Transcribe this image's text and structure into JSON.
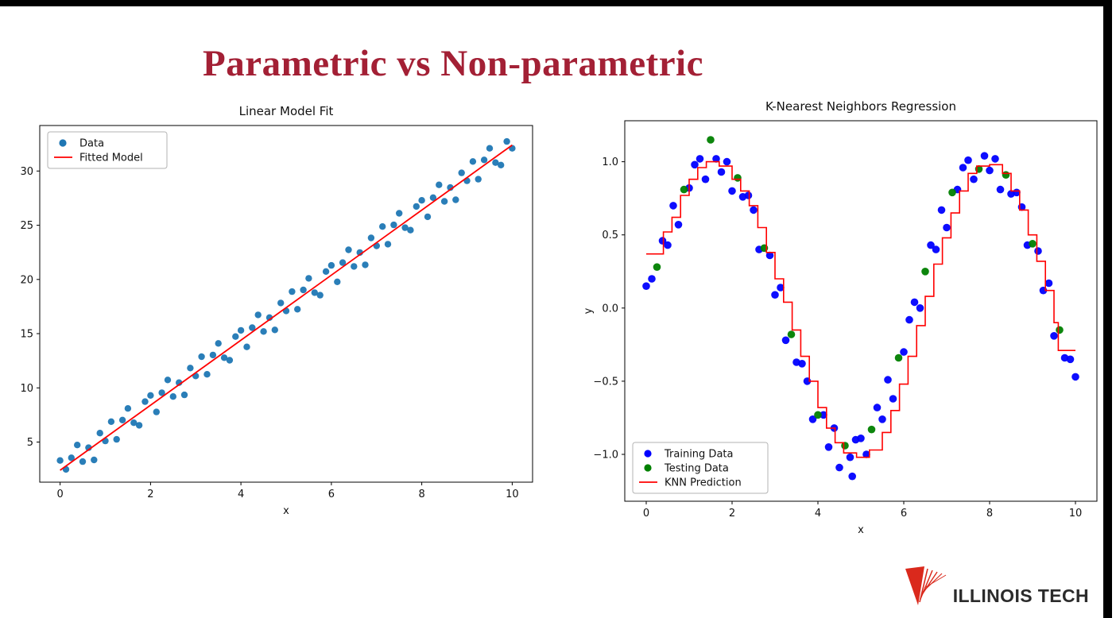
{
  "slide": {
    "title": "Parametric vs Non-parametric",
    "title_color": "#A32035"
  },
  "logo": {
    "text": "ILLINOIS TECH",
    "mark_color": "#DA291C",
    "text_color": "#2B2B2B"
  },
  "chart_data": [
    {
      "type": "scatter",
      "title": "Linear Model Fit",
      "xlabel": "x",
      "ylabel": "",
      "xlim": [
        -0.45,
        10.45
      ],
      "ylim": [
        1.3,
        34.2
      ],
      "xticks": [
        0,
        2,
        4,
        6,
        8,
        10
      ],
      "xtick_labels": [
        "0",
        "2",
        "4",
        "6",
        "8",
        "10"
      ],
      "yticks": [
        5,
        10,
        15,
        20,
        25,
        30
      ],
      "ytick_labels": [
        "5",
        "10",
        "15",
        "20",
        "25",
        "30"
      ],
      "grid": false,
      "legend": {
        "position": "top-left",
        "items": [
          {
            "label": "Data",
            "marker": "dot",
            "color": "#1f77b4"
          },
          {
            "label": "Fitted Model",
            "marker": "line",
            "color": "#ff0000"
          }
        ]
      },
      "series": [
        {
          "name": "Data",
          "type": "scatter",
          "color": "#1f77b4",
          "size": 4.2,
          "points": [
            [
              0,
              3.3
            ],
            [
              0.13,
              2.48
            ],
            [
              0.25,
              3.55
            ],
            [
              0.38,
              4.73
            ],
            [
              0.5,
              3.2
            ],
            [
              0.63,
              4.48
            ],
            [
              0.75,
              3.35
            ],
            [
              0.88,
              5.83
            ],
            [
              1,
              5.1
            ],
            [
              1.13,
              6.88
            ],
            [
              1.25,
              5.25
            ],
            [
              1.38,
              7.03
            ],
            [
              1.5,
              8.1
            ],
            [
              1.63,
              6.78
            ],
            [
              1.75,
              6.55
            ],
            [
              1.88,
              8.73
            ],
            [
              2,
              9.3
            ],
            [
              2.13,
              7.78
            ],
            [
              2.25,
              9.55
            ],
            [
              2.38,
              10.73
            ],
            [
              2.5,
              9.2
            ],
            [
              2.63,
              10.48
            ],
            [
              2.75,
              9.35
            ],
            [
              2.88,
              11.83
            ],
            [
              3,
              11.1
            ],
            [
              3.13,
              12.88
            ],
            [
              3.25,
              11.25
            ],
            [
              3.38,
              13.03
            ],
            [
              3.5,
              14.1
            ],
            [
              3.63,
              12.78
            ],
            [
              3.75,
              12.55
            ],
            [
              3.88,
              14.73
            ],
            [
              4,
              15.3
            ],
            [
              4.13,
              13.78
            ],
            [
              4.25,
              15.55
            ],
            [
              4.38,
              16.73
            ],
            [
              4.5,
              15.2
            ],
            [
              4.63,
              16.48
            ],
            [
              4.75,
              15.35
            ],
            [
              4.88,
              17.83
            ],
            [
              5,
              17.1
            ],
            [
              5.13,
              18.88
            ],
            [
              5.25,
              17.25
            ],
            [
              5.38,
              19.03
            ],
            [
              5.5,
              20.1
            ],
            [
              5.63,
              18.78
            ],
            [
              5.75,
              18.55
            ],
            [
              5.88,
              20.73
            ],
            [
              6,
              21.3
            ],
            [
              6.13,
              19.78
            ],
            [
              6.25,
              21.55
            ],
            [
              6.38,
              22.73
            ],
            [
              6.5,
              21.2
            ],
            [
              6.63,
              22.48
            ],
            [
              6.75,
              21.35
            ],
            [
              6.88,
              23.83
            ],
            [
              7,
              23.1
            ],
            [
              7.13,
              24.88
            ],
            [
              7.25,
              23.25
            ],
            [
              7.38,
              25.03
            ],
            [
              7.5,
              26.1
            ],
            [
              7.63,
              24.78
            ],
            [
              7.75,
              24.55
            ],
            [
              7.88,
              26.73
            ],
            [
              8,
              27.3
            ],
            [
              8.13,
              25.78
            ],
            [
              8.25,
              27.55
            ],
            [
              8.38,
              28.73
            ],
            [
              8.5,
              27.2
            ],
            [
              8.63,
              28.48
            ],
            [
              8.75,
              27.35
            ],
            [
              8.88,
              29.83
            ],
            [
              9,
              29.1
            ],
            [
              9.13,
              30.88
            ],
            [
              9.25,
              29.25
            ],
            [
              9.38,
              31.03
            ],
            [
              9.5,
              32.1
            ],
            [
              9.63,
              30.78
            ],
            [
              9.75,
              30.55
            ],
            [
              9.88,
              32.73
            ],
            [
              10,
              32.1
            ]
          ]
        },
        {
          "name": "Fitted Model",
          "type": "line",
          "color": "#ff0000",
          "points": [
            [
              0,
              2.4
            ],
            [
              10,
              32.4
            ]
          ]
        }
      ]
    },
    {
      "type": "scatter",
      "title": "K-Nearest Neighbors Regression",
      "xlabel": "x",
      "ylabel": "y",
      "xlim": [
        -0.5,
        10.5
      ],
      "ylim": [
        -1.32,
        1.28
      ],
      "xticks": [
        0,
        2,
        4,
        6,
        8,
        10
      ],
      "xtick_labels": [
        "0",
        "2",
        "4",
        "6",
        "8",
        "10"
      ],
      "yticks": [
        -1.0,
        -0.5,
        0.0,
        0.5,
        1.0
      ],
      "ytick_labels": [
        "−1.0",
        "−0.5",
        "0.0",
        "0.5",
        "1.0"
      ],
      "grid": false,
      "legend": {
        "position": "bottom-left",
        "items": [
          {
            "label": "Training Data",
            "marker": "dot",
            "color": "#0000ff"
          },
          {
            "label": "Testing Data",
            "marker": "dot",
            "color": "#008000"
          },
          {
            "label": "KNN Prediction",
            "marker": "line",
            "color": "#ff0000"
          }
        ]
      },
      "series": [
        {
          "name": "Training Data",
          "type": "scatter",
          "color": "#0000ff",
          "size": 4.8,
          "points": [
            [
              0,
              0.15
            ],
            [
              0.13,
              0.2
            ],
            [
              0.38,
              0.46
            ],
            [
              0.5,
              0.43
            ],
            [
              0.63,
              0.7
            ],
            [
              0.75,
              0.57
            ],
            [
              1,
              0.82
            ],
            [
              1.13,
              0.98
            ],
            [
              1.25,
              1.02
            ],
            [
              1.38,
              0.88
            ],
            [
              1.63,
              1.02
            ],
            [
              1.75,
              0.93
            ],
            [
              1.88,
              1
            ],
            [
              2,
              0.8
            ],
            [
              2.25,
              0.76
            ],
            [
              2.38,
              0.77
            ],
            [
              2.5,
              0.67
            ],
            [
              2.63,
              0.4
            ],
            [
              2.88,
              0.36
            ],
            [
              3,
              0.09
            ],
            [
              3.13,
              0.14
            ],
            [
              3.25,
              -0.22
            ],
            [
              3.5,
              -0.37
            ],
            [
              3.63,
              -0.38
            ],
            [
              3.75,
              -0.5
            ],
            [
              3.88,
              -0.76
            ],
            [
              4.13,
              -0.73
            ],
            [
              4.25,
              -0.95
            ],
            [
              4.38,
              -0.82
            ],
            [
              4.5,
              -1.09
            ],
            [
              4.75,
              -1.02
            ],
            [
              4.8,
              -1.15
            ],
            [
              4.88,
              -0.9
            ],
            [
              5,
              -0.89
            ],
            [
              5.13,
              -1
            ],
            [
              5.38,
              -0.68
            ],
            [
              5.5,
              -0.76
            ],
            [
              5.63,
              -0.49
            ],
            [
              5.75,
              -0.62
            ],
            [
              6,
              -0.3
            ],
            [
              6.13,
              -0.08
            ],
            [
              6.25,
              0.04
            ],
            [
              6.38,
              0
            ],
            [
              6.63,
              0.43
            ],
            [
              6.75,
              0.4
            ],
            [
              6.88,
              0.67
            ],
            [
              7,
              0.55
            ],
            [
              7.25,
              0.81
            ],
            [
              7.38,
              0.96
            ],
            [
              7.5,
              1.01
            ],
            [
              7.63,
              0.88
            ],
            [
              7.88,
              1.04
            ],
            [
              8,
              0.94
            ],
            [
              8.13,
              1.02
            ],
            [
              8.25,
              0.81
            ],
            [
              8.5,
              0.78
            ],
            [
              8.63,
              0.79
            ],
            [
              8.75,
              0.69
            ],
            [
              8.88,
              0.43
            ],
            [
              9.13,
              0.39
            ],
            [
              9.25,
              0.12
            ],
            [
              9.38,
              0.17
            ],
            [
              9.5,
              -0.19
            ],
            [
              9.75,
              -0.34
            ],
            [
              9.88,
              -0.35
            ],
            [
              10,
              -0.47
            ]
          ]
        },
        {
          "name": "Testing Data",
          "type": "scatter",
          "color": "#008000",
          "size": 4.8,
          "points": [
            [
              0.25,
              0.28
            ],
            [
              0.88,
              0.81
            ],
            [
              1.5,
              1.15
            ],
            [
              2.13,
              0.89
            ],
            [
              2.75,
              0.41
            ],
            [
              3.38,
              -0.18
            ],
            [
              4,
              -0.73
            ],
            [
              4.63,
              -0.94
            ],
            [
              5.25,
              -0.83
            ],
            [
              5.88,
              -0.34
            ],
            [
              6.5,
              0.25
            ],
            [
              7.13,
              0.79
            ],
            [
              7.75,
              0.95
            ],
            [
              8.38,
              0.91
            ],
            [
              9,
              0.44
            ],
            [
              9.63,
              -0.15
            ]
          ]
        },
        {
          "name": "KNN Prediction",
          "type": "step",
          "color": "#ff0000",
          "points": [
            [
              0,
              0.37
            ],
            [
              0.4,
              0.52
            ],
            [
              0.6,
              0.62
            ],
            [
              0.8,
              0.77
            ],
            [
              1,
              0.88
            ],
            [
              1.2,
              0.96
            ],
            [
              1.4,
              1
            ],
            [
              1.7,
              0.97
            ],
            [
              2,
              0.88
            ],
            [
              2.2,
              0.8
            ],
            [
              2.4,
              0.7
            ],
            [
              2.6,
              0.55
            ],
            [
              2.8,
              0.38
            ],
            [
              3,
              0.2
            ],
            [
              3.2,
              0.04
            ],
            [
              3.4,
              -0.15
            ],
            [
              3.6,
              -0.33
            ],
            [
              3.8,
              -0.5
            ],
            [
              4,
              -0.68
            ],
            [
              4.2,
              -0.82
            ],
            [
              4.4,
              -0.92
            ],
            [
              4.6,
              -0.99
            ],
            [
              4.9,
              -1.02
            ],
            [
              5.2,
              -0.97
            ],
            [
              5.5,
              -0.85
            ],
            [
              5.7,
              -0.7
            ],
            [
              5.9,
              -0.52
            ],
            [
              6.1,
              -0.33
            ],
            [
              6.3,
              -0.12
            ],
            [
              6.5,
              0.08
            ],
            [
              6.7,
              0.3
            ],
            [
              6.9,
              0.48
            ],
            [
              7.1,
              0.65
            ],
            [
              7.3,
              0.8
            ],
            [
              7.5,
              0.92
            ],
            [
              7.7,
              0.97
            ],
            [
              8,
              0.98
            ],
            [
              8.3,
              0.92
            ],
            [
              8.5,
              0.8
            ],
            [
              8.7,
              0.67
            ],
            [
              8.9,
              0.5
            ],
            [
              9.1,
              0.32
            ],
            [
              9.3,
              0.12
            ],
            [
              9.5,
              -0.1
            ],
            [
              9.6,
              -0.29
            ],
            [
              10,
              -0.29
            ]
          ]
        }
      ]
    }
  ]
}
